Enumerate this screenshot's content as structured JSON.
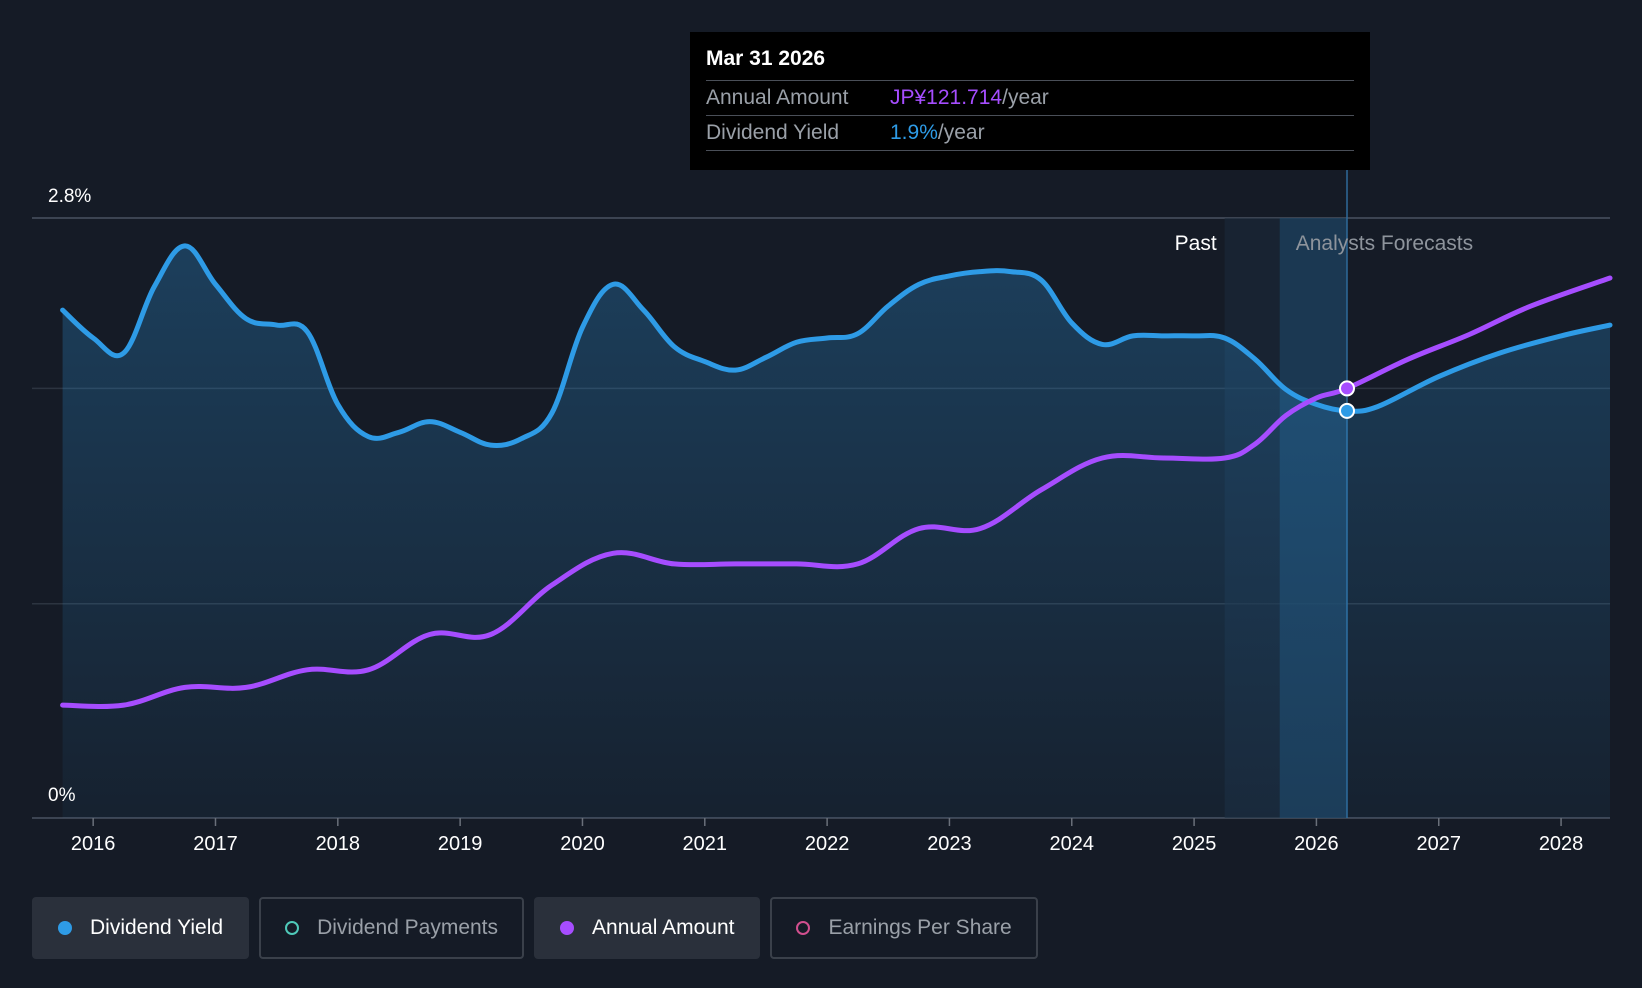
{
  "tooltip": {
    "date": "Mar 31 2026",
    "rows": [
      {
        "label": "Annual Amount",
        "value": "JP¥121.714",
        "unit": "/year"
      },
      {
        "label": "Dividend Yield",
        "value": "1.9%",
        "unit": "/year"
      }
    ]
  },
  "colors": {
    "background": "#151b26",
    "yield": "#2e9be6",
    "amount": "#a64dff",
    "payments": "#4fc9b9",
    "eps": "#d14f8e",
    "grid": "#2c3440"
  },
  "legend": [
    {
      "label": "Dividend Yield",
      "active": true,
      "color": "#2e9be6"
    },
    {
      "label": "Dividend Payments",
      "active": false,
      "color": "#4fc9b9"
    },
    {
      "label": "Annual Amount",
      "active": true,
      "color": "#a64dff"
    },
    {
      "label": "Earnings Per Share",
      "active": false,
      "color": "#d14f8e"
    }
  ],
  "chart_data": {
    "type": "line",
    "title": "",
    "xlabel": "",
    "ylabel": "",
    "ylim": [
      0,
      2.8
    ],
    "y_tick_labels": [
      "0%",
      "2.8%"
    ],
    "x_tick_labels": [
      "2016",
      "2017",
      "2018",
      "2019",
      "2020",
      "2021",
      "2022",
      "2023",
      "2024",
      "2025",
      "2026",
      "2027",
      "2028"
    ],
    "xlim": [
      2015.5,
      2028.4
    ],
    "region_labels": {
      "past": "Past",
      "forecast": "Analysts Forecasts"
    },
    "forecast_start": 2025.25,
    "highlight_x": 2026.25,
    "series": [
      {
        "name": "Dividend Yield",
        "unit": "%",
        "points": [
          [
            2015.75,
            2.37
          ],
          [
            2016.0,
            2.24
          ],
          [
            2016.25,
            2.17
          ],
          [
            2016.5,
            2.48
          ],
          [
            2016.75,
            2.67
          ],
          [
            2017.0,
            2.49
          ],
          [
            2017.25,
            2.33
          ],
          [
            2017.5,
            2.3
          ],
          [
            2017.75,
            2.27
          ],
          [
            2018.0,
            1.93
          ],
          [
            2018.25,
            1.78
          ],
          [
            2018.5,
            1.8
          ],
          [
            2018.75,
            1.85
          ],
          [
            2019.0,
            1.8
          ],
          [
            2019.25,
            1.74
          ],
          [
            2019.5,
            1.77
          ],
          [
            2019.75,
            1.89
          ],
          [
            2020.0,
            2.29
          ],
          [
            2020.25,
            2.49
          ],
          [
            2020.5,
            2.37
          ],
          [
            2020.75,
            2.2
          ],
          [
            2021.0,
            2.13
          ],
          [
            2021.25,
            2.09
          ],
          [
            2021.5,
            2.15
          ],
          [
            2021.75,
            2.22
          ],
          [
            2022.0,
            2.24
          ],
          [
            2022.25,
            2.26
          ],
          [
            2022.5,
            2.39
          ],
          [
            2022.75,
            2.49
          ],
          [
            2023.0,
            2.53
          ],
          [
            2023.25,
            2.55
          ],
          [
            2023.5,
            2.55
          ],
          [
            2023.75,
            2.51
          ],
          [
            2024.0,
            2.31
          ],
          [
            2024.25,
            2.21
          ],
          [
            2024.5,
            2.25
          ],
          [
            2024.75,
            2.25
          ],
          [
            2025.0,
            2.25
          ],
          [
            2025.25,
            2.24
          ],
          [
            2025.5,
            2.14
          ],
          [
            2025.75,
            2.0
          ],
          [
            2026.0,
            1.93
          ],
          [
            2026.25,
            1.9
          ],
          [
            2026.5,
            1.92
          ],
          [
            2027.0,
            2.06
          ],
          [
            2027.5,
            2.17
          ],
          [
            2028.0,
            2.25
          ],
          [
            2028.4,
            2.3
          ]
        ]
      },
      {
        "name": "Annual Amount",
        "unit": "JP¥",
        "ylim": [
          0,
          170
        ],
        "points": [
          [
            2015.75,
            32
          ],
          [
            2016.25,
            32
          ],
          [
            2016.75,
            37
          ],
          [
            2017.25,
            37
          ],
          [
            2017.75,
            42
          ],
          [
            2018.25,
            42
          ],
          [
            2018.75,
            52
          ],
          [
            2019.25,
            52
          ],
          [
            2019.75,
            66
          ],
          [
            2020.25,
            75
          ],
          [
            2020.75,
            72
          ],
          [
            2021.25,
            72
          ],
          [
            2021.75,
            72
          ],
          [
            2022.25,
            72
          ],
          [
            2022.75,
            82
          ],
          [
            2023.25,
            82
          ],
          [
            2023.75,
            93
          ],
          [
            2024.25,
            102
          ],
          [
            2024.75,
            102
          ],
          [
            2025.25,
            102
          ],
          [
            2025.5,
            106
          ],
          [
            2025.75,
            114
          ],
          [
            2026.0,
            119
          ],
          [
            2026.25,
            121.714
          ],
          [
            2026.75,
            130
          ],
          [
            2027.25,
            137
          ],
          [
            2027.75,
            145
          ],
          [
            2028.4,
            153
          ]
        ]
      }
    ]
  }
}
